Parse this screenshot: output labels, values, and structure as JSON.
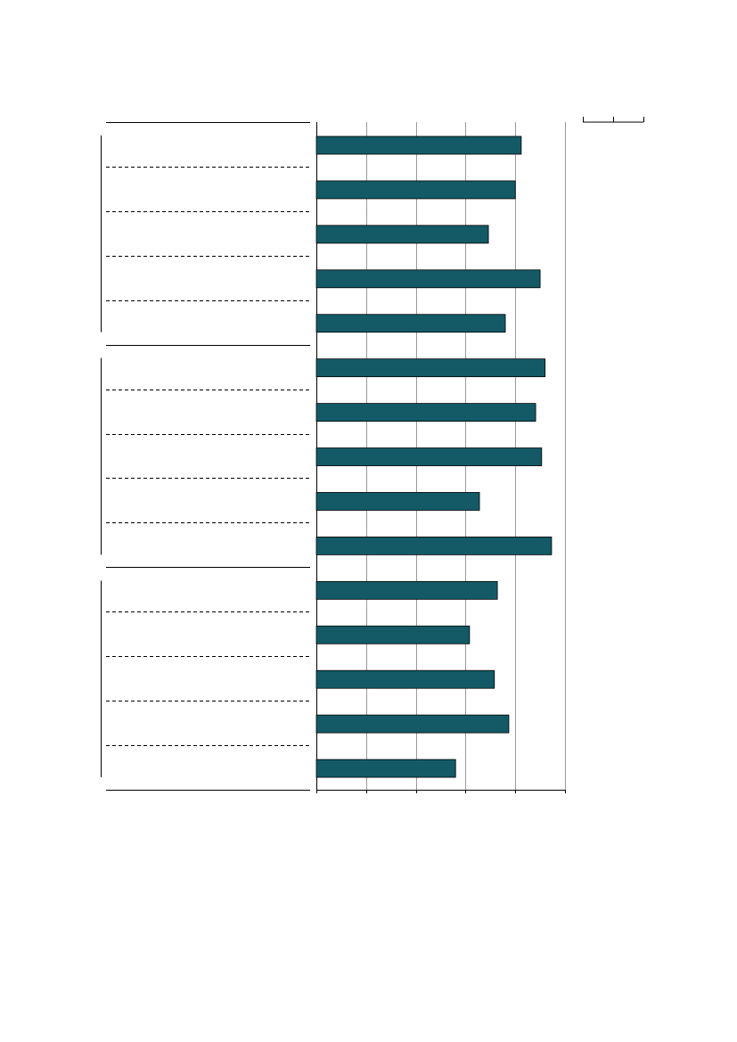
{
  "chart_data": {
    "type": "bar",
    "orientation": "horizontal",
    "categories": [
      null,
      null,
      null,
      null,
      null,
      null,
      null,
      null,
      null,
      null,
      null,
      null,
      null,
      null,
      null
    ],
    "values": [
      4.12,
      4.0,
      3.46,
      4.5,
      3.8,
      4.6,
      4.41,
      4.53,
      3.28,
      4.73,
      3.64,
      3.08,
      3.58,
      3.87,
      2.8
    ],
    "color": "#135a66",
    "xlim": [
      0,
      5
    ],
    "xticks": [
      0,
      1,
      2,
      3,
      4,
      5
    ],
    "grid": true
  }
}
